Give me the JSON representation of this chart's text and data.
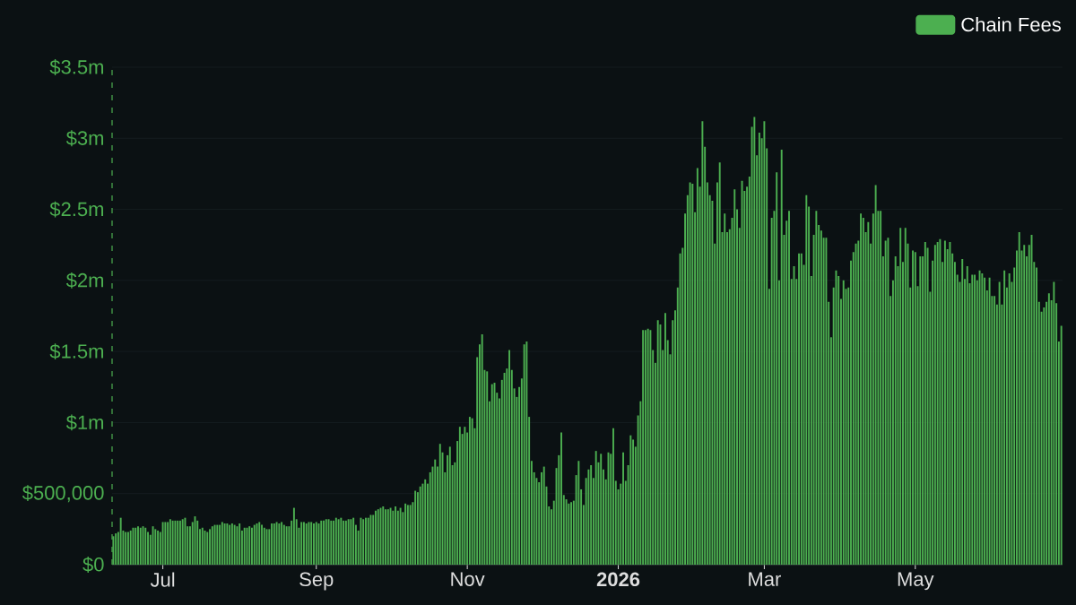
{
  "chart_data": {
    "type": "bar",
    "x": [
      "2025-06-11",
      "2025-06-12",
      "2025-06-13",
      "2025-06-14",
      "2025-06-15",
      "2025-06-16",
      "2025-06-17",
      "2025-06-18",
      "2025-06-19",
      "2025-06-20",
      "2025-06-21",
      "2025-06-22",
      "2025-06-23",
      "2025-06-24",
      "2025-06-25",
      "2025-06-26",
      "2025-06-27",
      "2025-06-28",
      "2025-06-29",
      "2025-06-30",
      "2025-07-01",
      "2025-07-02",
      "2025-07-03",
      "2025-07-04",
      "2025-07-05",
      "2025-07-06",
      "2025-07-07",
      "2025-07-08",
      "2025-07-09",
      "2025-07-10",
      "2025-07-11",
      "2025-07-12",
      "2025-07-13",
      "2025-07-14",
      "2025-07-15",
      "2025-07-16",
      "2025-07-17",
      "2025-07-18",
      "2025-07-19",
      "2025-07-20",
      "2025-07-21",
      "2025-07-22",
      "2025-07-23",
      "2025-07-24",
      "2025-07-25",
      "2025-07-26",
      "2025-07-27",
      "2025-07-28",
      "2025-07-29",
      "2025-07-30",
      "2025-07-31",
      "2025-08-01",
      "2025-08-02",
      "2025-08-03",
      "2025-08-04",
      "2025-08-05",
      "2025-08-06",
      "2025-08-07",
      "2025-08-08",
      "2025-08-09",
      "2025-08-10",
      "2025-08-11",
      "2025-08-12",
      "2025-08-13",
      "2025-08-14",
      "2025-08-15",
      "2025-08-16",
      "2025-08-17",
      "2025-08-18",
      "2025-08-19",
      "2025-08-20",
      "2025-08-21",
      "2025-08-22",
      "2025-08-23",
      "2025-08-24",
      "2025-08-25",
      "2025-08-26",
      "2025-08-27",
      "2025-08-28",
      "2025-08-29",
      "2025-08-30",
      "2025-08-31",
      "2025-09-01",
      "2025-09-02",
      "2025-09-03",
      "2025-09-04",
      "2025-09-05",
      "2025-09-06",
      "2025-09-07",
      "2025-09-08",
      "2025-09-09",
      "2025-09-10",
      "2025-09-11",
      "2025-09-12",
      "2025-09-13",
      "2025-09-14",
      "2025-09-15",
      "2025-09-16",
      "2025-09-17",
      "2025-09-18",
      "2025-09-19",
      "2025-09-20",
      "2025-09-21",
      "2025-09-22",
      "2025-09-23",
      "2025-09-24",
      "2025-09-25",
      "2025-09-26",
      "2025-09-27",
      "2025-09-28",
      "2025-09-29",
      "2025-09-30",
      "2025-10-01",
      "2025-10-02",
      "2025-10-03",
      "2025-10-04",
      "2025-10-05",
      "2025-10-06",
      "2025-10-07",
      "2025-10-08",
      "2025-10-09",
      "2025-10-10",
      "2025-10-11",
      "2025-10-12",
      "2025-10-13",
      "2025-10-14",
      "2025-10-15",
      "2025-10-16",
      "2025-10-17",
      "2025-10-18",
      "2025-10-19",
      "2025-10-20",
      "2025-10-21",
      "2025-10-22",
      "2025-10-23",
      "2025-10-24",
      "2025-10-25",
      "2025-10-26",
      "2025-10-27",
      "2025-10-28",
      "2025-10-29",
      "2025-10-30",
      "2025-10-31",
      "2025-11-01",
      "2025-11-02",
      "2025-11-03",
      "2025-11-04",
      "2025-11-05",
      "2025-11-06",
      "2025-11-07",
      "2025-11-08",
      "2025-11-09",
      "2025-11-10",
      "2025-11-11",
      "2025-11-12",
      "2025-11-13",
      "2025-11-14",
      "2025-11-15",
      "2025-11-16",
      "2025-11-17",
      "2025-11-18",
      "2025-11-19",
      "2025-11-20",
      "2025-11-21",
      "2025-11-22",
      "2025-11-23",
      "2025-11-24",
      "2025-11-25",
      "2025-11-26",
      "2025-11-27",
      "2025-11-28",
      "2025-11-29",
      "2025-11-30",
      "2025-12-01",
      "2025-12-02",
      "2025-12-03",
      "2025-12-04",
      "2025-12-05",
      "2025-12-06",
      "2025-12-07",
      "2025-12-08",
      "2025-12-09",
      "2025-12-10",
      "2025-12-11",
      "2025-12-12",
      "2025-12-13",
      "2025-12-14",
      "2025-12-15",
      "2025-12-16",
      "2025-12-17",
      "2025-12-18",
      "2025-12-19",
      "2025-12-20",
      "2025-12-21",
      "2025-12-22",
      "2025-12-23",
      "2025-12-24",
      "2025-12-25",
      "2025-12-26",
      "2025-12-27",
      "2025-12-28",
      "2025-12-29",
      "2025-12-30",
      "2025-12-31",
      "2026-01-01",
      "2026-01-02",
      "2026-01-03",
      "2026-01-04",
      "2026-01-05",
      "2026-01-06",
      "2026-01-07",
      "2026-01-08",
      "2026-01-09",
      "2026-01-10",
      "2026-01-11",
      "2026-01-12",
      "2026-01-13",
      "2026-01-14",
      "2026-01-15",
      "2026-01-16",
      "2026-01-17",
      "2026-01-18",
      "2026-01-19",
      "2026-01-20",
      "2026-01-21",
      "2026-01-22",
      "2026-01-23",
      "2026-01-24",
      "2026-01-25",
      "2026-01-26",
      "2026-01-27",
      "2026-01-28",
      "2026-01-29",
      "2026-01-30",
      "2026-01-31",
      "2026-02-01",
      "2026-02-02",
      "2026-02-03",
      "2026-02-04",
      "2026-02-05",
      "2026-02-06",
      "2026-02-07",
      "2026-02-08",
      "2026-02-09",
      "2026-02-10",
      "2026-02-11",
      "2026-02-12",
      "2026-02-13",
      "2026-02-14",
      "2026-02-15",
      "2026-02-16",
      "2026-02-17",
      "2026-02-18",
      "2026-02-19",
      "2026-02-20",
      "2026-02-21",
      "2026-02-22",
      "2026-02-23",
      "2026-02-24",
      "2026-02-25",
      "2026-02-26",
      "2026-02-27",
      "2026-02-28",
      "2026-03-01",
      "2026-03-02",
      "2026-03-03",
      "2026-03-04",
      "2026-03-05",
      "2026-03-06",
      "2026-03-07",
      "2026-03-08",
      "2026-03-09",
      "2026-03-10",
      "2026-03-11",
      "2026-03-12",
      "2026-03-13",
      "2026-03-14",
      "2026-03-15",
      "2026-03-16",
      "2026-03-17",
      "2026-03-18",
      "2026-03-19",
      "2026-03-20",
      "2026-03-21",
      "2026-03-22",
      "2026-03-23",
      "2026-03-24",
      "2026-03-25",
      "2026-03-26",
      "2026-03-27",
      "2026-03-28",
      "2026-03-29",
      "2026-03-30",
      "2026-03-31",
      "2026-04-01",
      "2026-04-02",
      "2026-04-03",
      "2026-04-04",
      "2026-04-05",
      "2026-04-06",
      "2026-04-07",
      "2026-04-08",
      "2026-04-09",
      "2026-04-10",
      "2026-04-11",
      "2026-04-12",
      "2026-04-13",
      "2026-04-14",
      "2026-04-15",
      "2026-04-16",
      "2026-04-17",
      "2026-04-18",
      "2026-04-19",
      "2026-04-20",
      "2026-04-21",
      "2026-04-22",
      "2026-04-23",
      "2026-04-24",
      "2026-04-25",
      "2026-04-26",
      "2026-04-27",
      "2026-04-28",
      "2026-04-29",
      "2026-04-30",
      "2026-05-01",
      "2026-05-02",
      "2026-05-03",
      "2026-05-04",
      "2026-05-05",
      "2026-05-06",
      "2026-05-07",
      "2026-05-08",
      "2026-05-09",
      "2026-05-10",
      "2026-05-11",
      "2026-05-12",
      "2026-05-13",
      "2026-05-14",
      "2026-05-15",
      "2026-05-16",
      "2026-05-17",
      "2026-05-18",
      "2026-05-19",
      "2026-05-20",
      "2026-05-21",
      "2026-05-22",
      "2026-05-23",
      "2026-05-24",
      "2026-05-25",
      "2026-05-26",
      "2026-05-27",
      "2026-05-28",
      "2026-05-29",
      "2026-05-30",
      "2026-05-31",
      "2026-06-01",
      "2026-06-02",
      "2026-06-03",
      "2026-06-04",
      "2026-06-05",
      "2026-06-06",
      "2026-06-07",
      "2026-06-08",
      "2026-06-09",
      "2026-06-10",
      "2026-06-11",
      "2026-06-12",
      "2026-06-13",
      "2026-06-14",
      "2026-06-15",
      "2026-06-16",
      "2026-06-17",
      "2026-06-18",
      "2026-06-19",
      "2026-06-20",
      "2026-06-21",
      "2026-06-22",
      "2026-06-23",
      "2026-06-24",
      "2026-06-25",
      "2026-06-26",
      "2026-06-27",
      "2026-06-28",
      "2026-06-29"
    ],
    "series": [
      {
        "name": "Chain Fees",
        "color": "#4caf50",
        "values": [
          200000.0,
          220000.0,
          230000.0,
          330000.0,
          240000.0,
          230000.0,
          230000.0,
          240000.0,
          260000.0,
          260000.0,
          270000.0,
          260000.0,
          270000.0,
          260000.0,
          230000.0,
          210000.0,
          270000.0,
          250000.0,
          240000.0,
          230000.0,
          300000.0,
          300000.0,
          300000.0,
          320000.0,
          310000.0,
          310000.0,
          310000.0,
          310000.0,
          320000.0,
          330000.0,
          270000.0,
          270000.0,
          300000.0,
          340000.0,
          310000.0,
          250000.0,
          260000.0,
          240000.0,
          230000.0,
          250000.0,
          270000.0,
          280000.0,
          280000.0,
          280000.0,
          300000.0,
          290000.0,
          290000.0,
          280000.0,
          290000.0,
          280000.0,
          270000.0,
          290000.0,
          240000.0,
          260000.0,
          260000.0,
          270000.0,
          260000.0,
          280000.0,
          290000.0,
          300000.0,
          280000.0,
          260000.0,
          250000.0,
          250000.0,
          290000.0,
          290000.0,
          300000.0,
          290000.0,
          300000.0,
          280000.0,
          270000.0,
          270000.0,
          310000.0,
          400000.0,
          320000.0,
          260000.0,
          300000.0,
          300000.0,
          290000.0,
          300000.0,
          300000.0,
          290000.0,
          300000.0,
          290000.0,
          310000.0,
          310000.0,
          320000.0,
          320000.0,
          310000.0,
          310000.0,
          330000.0,
          320000.0,
          330000.0,
          310000.0,
          310000.0,
          320000.0,
          320000.0,
          330000.0,
          280000.0,
          240000.0,
          330000.0,
          320000.0,
          330000.0,
          330000.0,
          350000.0,
          350000.0,
          380000.0,
          390000.0,
          400000.0,
          410000.0,
          390000.0,
          390000.0,
          400000.0,
          380000.0,
          410000.0,
          380000.0,
          400000.0,
          370000.0,
          430000.0,
          420000.0,
          420000.0,
          440000.0,
          520000.0,
          510000.0,
          550000.0,
          570000.0,
          600000.0,
          570000.0,
          650000.0,
          690000.0,
          740000.0,
          690000.0,
          850000.0,
          790000.0,
          650000.0,
          770000.0,
          830000.0,
          700000.0,
          720000.0,
          870000.0,
          970000.0,
          920000.0,
          970000.0,
          930000.0,
          1040000.0,
          1030000.0,
          960000.0,
          1460000.0,
          1550000.0,
          1620000.0,
          1370000.0,
          1360000.0,
          1150000.0,
          1270000.0,
          1280000.0,
          1210000.0,
          1170000.0,
          1300000.0,
          1350000.0,
          1380000.0,
          1510000.0,
          1370000.0,
          1240000.0,
          1180000.0,
          1250000.0,
          1310000.0,
          1550000.0,
          1570000.0,
          1040000.0,
          730000.0,
          650000.0,
          610000.0,
          580000.0,
          650000.0,
          690000.0,
          550000.0,
          410000.0,
          390000.0,
          450000.0,
          680000.0,
          770000.0,
          930000.0,
          490000.0,
          460000.0,
          430000.0,
          440000.0,
          450000.0,
          630000.0,
          730000.0,
          530000.0,
          420000.0,
          610000.0,
          670000.0,
          700000.0,
          610000.0,
          800000.0,
          720000.0,
          780000.0,
          670000.0,
          600000.0,
          790000.0,
          780000.0,
          960000.0,
          590000.0,
          530000.0,
          570000.0,
          790000.0,
          590000.0,
          700000.0,
          910000.0,
          880000.0,
          830000.0,
          1050000.0,
          1150000.0,
          1650000.0,
          1650000.0,
          1660000.0,
          1650000.0,
          1510000.0,
          1420000.0,
          1720000.0,
          1690000.0,
          1510000.0,
          1770000.0,
          1580000.0,
          1480000.0,
          1720000.0,
          1790000.0,
          1950000.0,
          2190000.0,
          2230000.0,
          2470000.0,
          2600000.0,
          2690000.0,
          2680000.0,
          2480000.0,
          2790000.0,
          2660000.0,
          3120000.0,
          2940000.0,
          2690000.0,
          2600000.0,
          2560000.0,
          2260000.0,
          2690000.0,
          2830000.0,
          2340000.0,
          2470000.0,
          2340000.0,
          2360000.0,
          2440000.0,
          2640000.0,
          2500000.0,
          2370000.0,
          2700000.0,
          2630000.0,
          2660000.0,
          2730000.0,
          3080000.0,
          3150000.0,
          2880000.0,
          3040000.0,
          3000000.0,
          3120000.0,
          2930000.0,
          1940000.0,
          2440000.0,
          2490000.0,
          2760000.0,
          2000000.0,
          2920000.0,
          2320000.0,
          2420000.0,
          2490000.0,
          2010000.0,
          2100000.0,
          2010000.0,
          2190000.0,
          2190000.0,
          2110000.0,
          2600000.0,
          2520000.0,
          2030000.0,
          2320000.0,
          2490000.0,
          2390000.0,
          2350000.0,
          2300000.0,
          2300000.0,
          1850000.0,
          1600000.0,
          1950000.0,
          2070000.0,
          2030000.0,
          1870000.0,
          2000000.0,
          1940000.0,
          1950000.0,
          2140000.0,
          2200000.0,
          2260000.0,
          2280000.0,
          2470000.0,
          2440000.0,
          2340000.0,
          2410000.0,
          2260000.0,
          2470000.0,
          2670000.0,
          2490000.0,
          2490000.0,
          2170000.0,
          2280000.0,
          2300000.0,
          1890000.0,
          2000000.0,
          2170000.0,
          2100000.0,
          2370000.0,
          2130000.0,
          2370000.0,
          2260000.0,
          1950000.0,
          2210000.0,
          2200000.0,
          1960000.0,
          2170000.0,
          2170000.0,
          2270000.0,
          2230000.0,
          1920000.0,
          2140000.0,
          2250000.0,
          2270000.0,
          2290000.0,
          2130000.0,
          2280000.0,
          2220000.0,
          2270000.0,
          2190000.0,
          2130000.0,
          2040000.0,
          1990000.0,
          2150000.0,
          2010000.0,
          2100000.0,
          1980000.0,
          2040000.0,
          2040000.0,
          2000000.0,
          2070000.0,
          2050000.0,
          2020000.0,
          1930000.0,
          2020000.0,
          1890000.0,
          1890000.0,
          1830000.0,
          1990000.0,
          1830000.0,
          2070000.0,
          1950000.0,
          2050000.0,
          1990000.0,
          2090000.0,
          2210000.0,
          2340000.0,
          2210000.0,
          2250000.0,
          2170000.0,
          2250000.0,
          2320000.0,
          2130000.0,
          2090000.0,
          1850000.0,
          1780000.0,
          1810000.0,
          1850000.0,
          1910000.0,
          1860000.0,
          1990000.0,
          1840000.0,
          1570000.0,
          1680000.0
        ]
      }
    ],
    "xlim": [
      "2025-06-10T12:00",
      "2026-06-29T12:00"
    ],
    "xticks": [
      {
        "value": "2025-07-01",
        "label": "Jul"
      },
      {
        "value": "2025-09-01",
        "label": "Sep"
      },
      {
        "value": "2025-11-01",
        "label": "Nov"
      },
      {
        "value": "2026-01-01",
        "label": "**2026**"
      },
      {
        "value": "2026-03-01",
        "label": "Mar"
      },
      {
        "value": "2026-05-01",
        "label": "May"
      }
    ],
    "ylim": [
      0,
      3500000
    ],
    "yticks": [
      {
        "value": 0,
        "label": "$0"
      },
      {
        "value": 500000,
        "label": "$500,000"
      },
      {
        "value": 1000000,
        "label": "$1m"
      },
      {
        "value": 1500000,
        "label": "$1.5m"
      },
      {
        "value": 2000000,
        "label": "$2m"
      },
      {
        "value": 2500000,
        "label": "$2.5m"
      },
      {
        "value": 3000000,
        "label": "$3m"
      },
      {
        "value": 3500000,
        "label": "$3.5m"
      }
    ],
    "ref_lines": [
      {
        "axis": "x",
        "value": "2025-06-10T12:00",
        "color": "#4caf50",
        "line_style": "dashed"
      }
    ],
    "grid": "y",
    "legend": "top right"
  }
}
